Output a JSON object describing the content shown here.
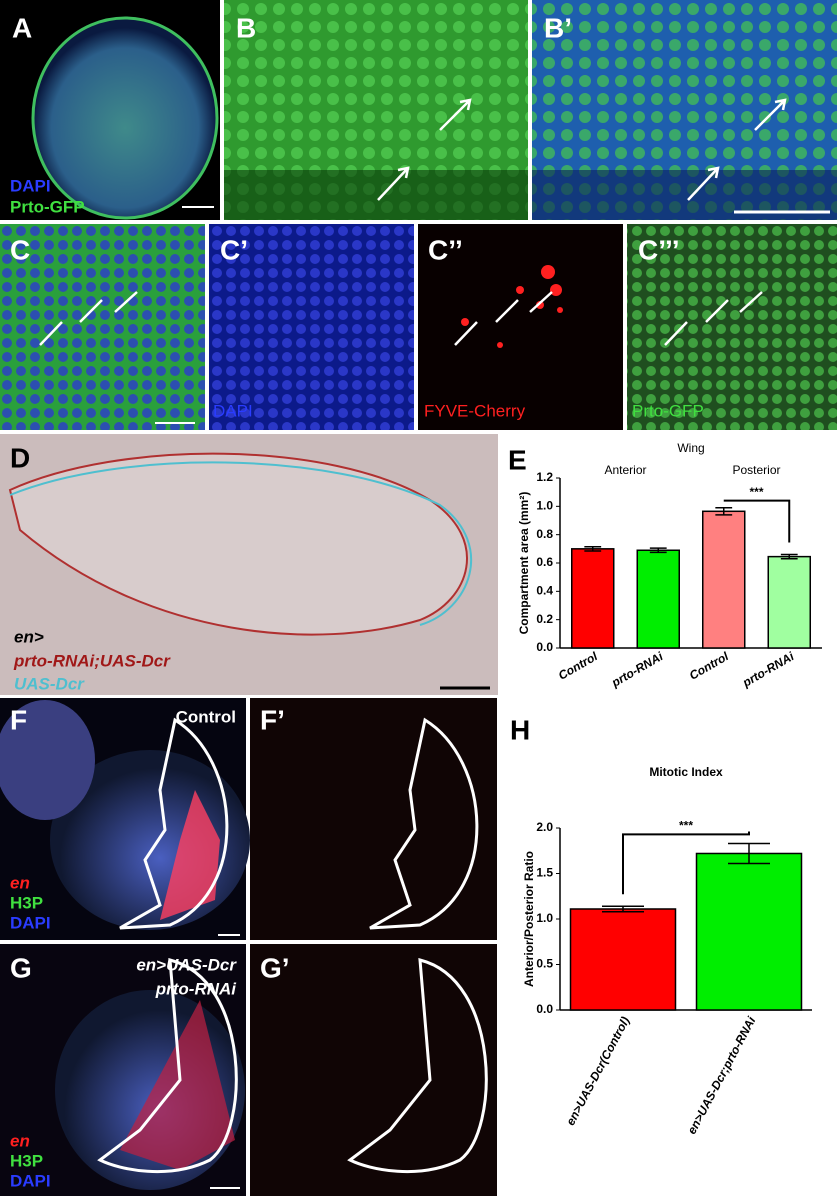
{
  "panel_labels": [
    "A",
    "B",
    "B’",
    "C",
    "C’",
    "C’’",
    "C’’’",
    "D",
    "E",
    "F",
    "F’",
    "G",
    "G’",
    "H"
  ],
  "annotations": {
    "a_dapi": "DAPI",
    "a_gfp": "Prto-GFP",
    "c1_dapi": "DAPI",
    "c2_fyve": "FYVE-Cherry",
    "c3_gfp": "Prto-GFP",
    "d_en": "en>",
    "d_rnai": "prto-RNAi;UAS-Dcr",
    "d_dcr": "UAS-Dcr",
    "f_control": "Control",
    "f_en": "en",
    "f_h3p": "H3P",
    "f_dapi": "DAPI",
    "g_line1": "en>UAS-Dcr",
    "g_line2": "prto-RNAi",
    "g_en": "en",
    "g_h3p": "H3P",
    "g_dapi": "DAPI"
  },
  "chart_data": [
    {
      "type": "bar",
      "title": "Wing",
      "group_labels": [
        "Anterior",
        "Posterior"
      ],
      "y_label": "Compartment area (mm²)",
      "categories": [
        "Control",
        "prto-RNAi",
        "Control",
        "prto-RNAi"
      ],
      "values": [
        0.7,
        0.69,
        0.965,
        0.645
      ],
      "errors": [
        0.015,
        0.015,
        0.025,
        0.015
      ],
      "colors": [
        "#ff0000",
        "#00ee00",
        "#ff8080",
        "#a0ffa0"
      ],
      "ylim": [
        0,
        1.2
      ],
      "yticks": [
        {
          "value": 0,
          "label": "0.0"
        },
        0.2,
        0.4,
        0.6,
        0.8,
        {
          "value": 1,
          "label": "1.0"
        },
        1.2
      ],
      "significance": "***"
    },
    {
      "type": "bar",
      "title": "Mitotic Index",
      "y_label": "Anterior/Posterior Ratio",
      "categories": [
        "en>UAS-Dcr(Control)",
        "en>UAS-Dcr;prto-RNAi"
      ],
      "values": [
        1.11,
        1.72
      ],
      "errors": [
        0.03,
        0.11
      ],
      "colors": [
        "#ff0000",
        "#00ee00"
      ],
      "ylim": [
        0,
        2
      ],
      "yticks": [
        {
          "value": 0,
          "label": "0.0"
        },
        0.5,
        {
          "value": 1,
          "label": "1.0"
        },
        1.5,
        {
          "value": 2,
          "label": "2.0"
        }
      ],
      "significance": "***"
    }
  ]
}
